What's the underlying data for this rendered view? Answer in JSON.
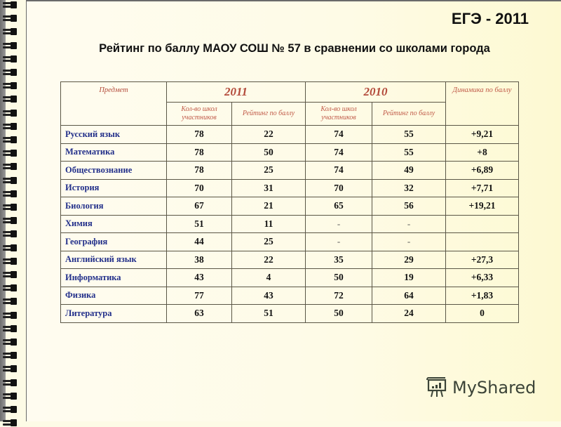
{
  "slide": {
    "badge": "ЕГЭ - 2011",
    "title": "Рейтинг по баллу МАОУ СОШ № 57 в сравнении со школами города"
  },
  "table": {
    "header": {
      "subject": "Предмет",
      "year_2011": "2011",
      "year_2010": "2010",
      "dynamics": "Динамика по баллу",
      "schools_count": "Кол-во школ участников",
      "rating": "Рейтинг по баллу"
    },
    "rows": [
      {
        "subject": "Русский язык",
        "schools_2011": "78",
        "rating_2011": "22",
        "schools_2010": "74",
        "rating_2010": "55",
        "dynamics": "+9,21"
      },
      {
        "subject": "Математика",
        "schools_2011": "78",
        "rating_2011": "50",
        "schools_2010": "74",
        "rating_2010": "55",
        "dynamics": "+8"
      },
      {
        "subject": "Обществознание",
        "schools_2011": "78",
        "rating_2011": "25",
        "schools_2010": "74",
        "rating_2010": "49",
        "dynamics": "+6,89"
      },
      {
        "subject": "История",
        "schools_2011": "70",
        "rating_2011": "31",
        "schools_2010": "70",
        "rating_2010": "32",
        "dynamics": "+7,71"
      },
      {
        "subject": "Биология",
        "schools_2011": "67",
        "rating_2011": "21",
        "schools_2010": "65",
        "rating_2010": "56",
        "dynamics": "+19,21"
      },
      {
        "subject": "Химия",
        "schools_2011": "51",
        "rating_2011": "11",
        "schools_2010": "-",
        "rating_2010": "-",
        "dynamics": ""
      },
      {
        "subject": "География",
        "schools_2011": "44",
        "rating_2011": "25",
        "schools_2010": "-",
        "rating_2010": "-",
        "dynamics": ""
      },
      {
        "subject": "Английский язык",
        "schools_2011": "38",
        "rating_2011": "22",
        "schools_2010": "35",
        "rating_2010": "29",
        "dynamics": "+27,3"
      },
      {
        "subject": "Информатика",
        "schools_2011": "43",
        "rating_2011": "4",
        "schools_2010": "50",
        "rating_2010": "19",
        "dynamics": "+6,33"
      },
      {
        "subject": "Физика",
        "schools_2011": "77",
        "rating_2011": "43",
        "schools_2010": "72",
        "rating_2010": "64",
        "dynamics": "+1,83"
      },
      {
        "subject": "Литература",
        "schools_2011": "63",
        "rating_2011": "51",
        "schools_2010": "50",
        "rating_2010": "24",
        "dynamics": "0"
      }
    ]
  },
  "watermark": {
    "text": "MyShared",
    "icon": "presentation-board-icon"
  },
  "colors": {
    "header_text": "#b34a3a",
    "subject_text": "#23308a",
    "value_text": "#111111",
    "background": "#fdfbe6",
    "border": "#5a5646"
  }
}
